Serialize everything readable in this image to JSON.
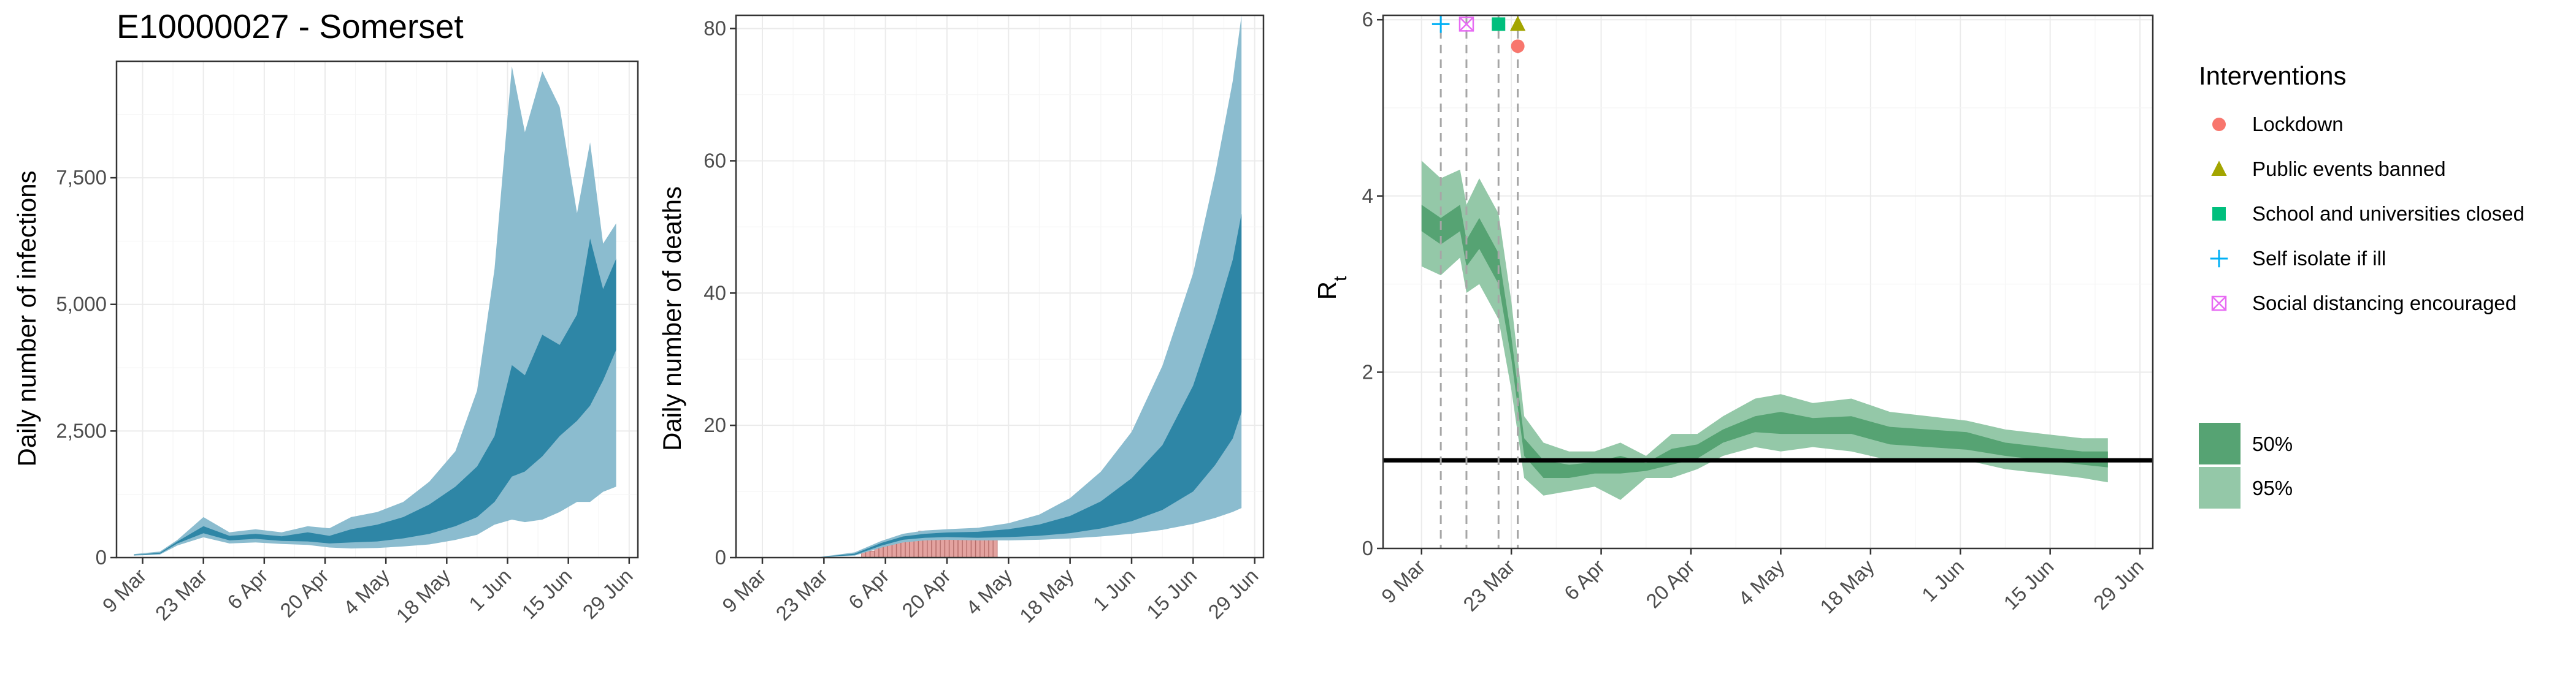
{
  "title": "E10000027 - Somerset",
  "colors": {
    "infections_95": "#8bbccf",
    "infections_50": "#2e86a6",
    "deaths_bars": "#e4a3a0",
    "rt_95": "#94c8a8",
    "rt_50": "#56a373",
    "lockdown": "#f8766d",
    "public_events": "#a3a500",
    "school": "#00bf7d",
    "self_isolate": "#00b0f6",
    "social_distancing": "#e76bf3",
    "grid_major": "#ebebeb",
    "grid_minor": "#f5f5f5",
    "panel_border": "#333333"
  },
  "legend": {
    "interventions_title": "Interventions",
    "interventions": [
      {
        "label": "Lockdown",
        "shape": "circle",
        "color_key": "lockdown"
      },
      {
        "label": "Public events banned",
        "shape": "triangle",
        "color_key": "public_events"
      },
      {
        "label": "School and universities closed",
        "shape": "square",
        "color_key": "school"
      },
      {
        "label": "Self isolate if ill",
        "shape": "plus",
        "color_key": "self_isolate"
      },
      {
        "label": "Social distancing encouraged",
        "shape": "boxx",
        "color_key": "social_distancing"
      }
    ],
    "intervals": [
      {
        "label": "50%",
        "color_key": "rt_50"
      },
      {
        "label": "95%",
        "color_key": "rt_95"
      }
    ]
  },
  "chart_data": [
    {
      "type": "area",
      "ylabel": "Daily number of infections",
      "xlabel": "",
      "x_range": [
        "2020-03-03",
        "2020-07-01"
      ],
      "ylim": [
        0,
        9800
      ],
      "x_ticks": [
        "2020-03-09",
        "2020-03-23",
        "2020-04-06",
        "2020-04-20",
        "2020-05-04",
        "2020-05-18",
        "2020-06-01",
        "2020-06-15",
        "2020-06-29"
      ],
      "x_tick_labels": [
        "9 Mar",
        "23 Mar",
        "6 Apr",
        "20 Apr",
        "4 May",
        "18 May",
        "1 Jun",
        "15 Jun",
        "29 Jun"
      ],
      "y_ticks": [
        0,
        2500,
        5000,
        7500
      ],
      "y_tick_labels": [
        "0",
        "2,500",
        "5,000",
        "7,500"
      ],
      "series": [
        {
          "name": "95%",
          "x": [
            "2020-03-07",
            "2020-03-13",
            "2020-03-17",
            "2020-03-23",
            "2020-03-29",
            "2020-04-04",
            "2020-04-10",
            "2020-04-16",
            "2020-04-21",
            "2020-04-26",
            "2020-05-02",
            "2020-05-08",
            "2020-05-14",
            "2020-05-20",
            "2020-05-25",
            "2020-05-29",
            "2020-06-02",
            "2020-06-05",
            "2020-06-09",
            "2020-06-13",
            "2020-06-17",
            "2020-06-20",
            "2020-06-23",
            "2020-06-26"
          ],
          "upper": [
            70,
            120,
            350,
            800,
            500,
            560,
            500,
            620,
            580,
            800,
            900,
            1100,
            1500,
            2100,
            3300,
            5700,
            9700,
            8400,
            9600,
            8900,
            6800,
            8200,
            6200,
            6600
          ],
          "lower": [
            40,
            60,
            240,
            400,
            280,
            300,
            270,
            250,
            200,
            180,
            190,
            220,
            260,
            350,
            450,
            650,
            750,
            700,
            750,
            900,
            1100,
            1100,
            1300,
            1400
          ]
        },
        {
          "name": "50%",
          "x": [
            "2020-03-07",
            "2020-03-13",
            "2020-03-17",
            "2020-03-23",
            "2020-03-29",
            "2020-04-04",
            "2020-04-10",
            "2020-04-16",
            "2020-04-21",
            "2020-04-26",
            "2020-05-02",
            "2020-05-08",
            "2020-05-14",
            "2020-05-20",
            "2020-05-25",
            "2020-05-29",
            "2020-06-02",
            "2020-06-05",
            "2020-06-09",
            "2020-06-13",
            "2020-06-17",
            "2020-06-20",
            "2020-06-23",
            "2020-06-26"
          ],
          "upper": [
            55,
            95,
            320,
            620,
            430,
            470,
            420,
            500,
            430,
            560,
            650,
            800,
            1050,
            1400,
            1800,
            2400,
            3800,
            3600,
            4400,
            4200,
            4800,
            6300,
            5300,
            5900
          ],
          "lower": [
            45,
            75,
            280,
            480,
            340,
            370,
            330,
            320,
            280,
            300,
            320,
            380,
            470,
            620,
            800,
            1100,
            1600,
            1700,
            2000,
            2400,
            2700,
            3000,
            3500,
            4100
          ]
        }
      ]
    },
    {
      "type": "area",
      "ylabel": "Daily number of deaths",
      "xlabel": "",
      "x_range": [
        "2020-03-03",
        "2020-07-01"
      ],
      "ylim": [
        0,
        82
      ],
      "x_ticks": [
        "2020-03-09",
        "2020-03-23",
        "2020-04-06",
        "2020-04-20",
        "2020-05-04",
        "2020-05-18",
        "2020-06-01",
        "2020-06-15",
        "2020-06-29"
      ],
      "x_tick_labels": [
        "9 Mar",
        "23 Mar",
        "6 Apr",
        "20 Apr",
        "4 May",
        "18 May",
        "1 Jun",
        "15 Jun",
        "29 Jun"
      ],
      "y_ticks": [
        0,
        20,
        40,
        60,
        80
      ],
      "y_tick_labels": [
        "0",
        "20",
        "40",
        "60",
        "80"
      ],
      "series": [
        {
          "name": "95%",
          "x": [
            "2020-03-07",
            "2020-03-21",
            "2020-03-30",
            "2020-04-05",
            "2020-04-10",
            "2020-04-15",
            "2020-04-20",
            "2020-04-27",
            "2020-05-04",
            "2020-05-11",
            "2020-05-18",
            "2020-05-25",
            "2020-06-01",
            "2020-06-08",
            "2020-06-15",
            "2020-06-20",
            "2020-06-24",
            "2020-06-26"
          ],
          "upper": [
            0,
            0,
            0.8,
            2.5,
            3.6,
            4.1,
            4.3,
            4.5,
            5.2,
            6.5,
            9,
            13,
            19,
            29,
            43,
            58,
            72,
            82
          ],
          "lower": [
            0,
            0,
            0.3,
            1.5,
            2.3,
            2.6,
            2.7,
            2.6,
            2.6,
            2.7,
            2.9,
            3.2,
            3.6,
            4.2,
            5.1,
            6,
            6.9,
            7.5
          ]
        },
        {
          "name": "50%",
          "x": [
            "2020-03-07",
            "2020-03-21",
            "2020-03-30",
            "2020-04-05",
            "2020-04-10",
            "2020-04-15",
            "2020-04-20",
            "2020-04-27",
            "2020-05-04",
            "2020-05-11",
            "2020-05-18",
            "2020-05-25",
            "2020-06-01",
            "2020-06-08",
            "2020-06-15",
            "2020-06-20",
            "2020-06-24",
            "2020-06-26"
          ],
          "upper": [
            0,
            0,
            0.6,
            2.2,
            3.2,
            3.6,
            3.8,
            3.9,
            4.3,
            5,
            6.3,
            8.5,
            12,
            17,
            26,
            36,
            45,
            52
          ],
          "lower": [
            0,
            0,
            0.4,
            1.8,
            2.7,
            3,
            3.1,
            3,
            3.1,
            3.3,
            3.7,
            4.4,
            5.5,
            7.2,
            10,
            14,
            18,
            22
          ]
        }
      ],
      "bars": {
        "name": "deaths",
        "x": [
          "2020-04-01",
          "2020-04-02",
          "2020-04-03",
          "2020-04-04",
          "2020-04-05",
          "2020-04-06",
          "2020-04-07",
          "2020-04-08",
          "2020-04-09",
          "2020-04-10",
          "2020-04-11",
          "2020-04-12",
          "2020-04-13",
          "2020-04-14",
          "2020-04-15",
          "2020-04-16",
          "2020-04-17",
          "2020-04-18",
          "2020-04-19",
          "2020-04-20",
          "2020-04-21",
          "2020-04-22",
          "2020-04-23",
          "2020-04-24",
          "2020-04-25",
          "2020-04-26",
          "2020-04-27",
          "2020-04-28",
          "2020-04-29",
          "2020-04-30",
          "2020-05-01"
        ],
        "values": [
          1,
          1,
          1,
          2,
          2,
          2,
          2,
          3,
          3,
          3,
          3,
          3,
          3,
          4,
          4,
          4,
          3,
          4,
          4,
          3,
          4,
          3,
          4,
          3,
          3,
          4,
          3,
          3,
          3,
          3,
          3
        ]
      }
    },
    {
      "type": "area",
      "ylabel": "R_t",
      "xlabel": "",
      "x_range": [
        "2020-03-03",
        "2020-07-01"
      ],
      "ylim": [
        0,
        6.05
      ],
      "x_ticks": [
        "2020-03-09",
        "2020-03-23",
        "2020-04-06",
        "2020-04-20",
        "2020-05-04",
        "2020-05-18",
        "2020-06-01",
        "2020-06-15",
        "2020-06-29"
      ],
      "x_tick_labels": [
        "9 Mar",
        "23 Mar",
        "6 Apr",
        "20 Apr",
        "4 May",
        "18 May",
        "1 Jun",
        "15 Jun",
        "29 Jun"
      ],
      "y_ticks": [
        0,
        2,
        4,
        6
      ],
      "y_tick_labels": [
        "0",
        "2",
        "4",
        "6"
      ],
      "reference_line": 1,
      "series": [
        {
          "name": "95%",
          "x": [
            "2020-03-09",
            "2020-03-12",
            "2020-03-15",
            "2020-03-16",
            "2020-03-18",
            "2020-03-21",
            "2020-03-23",
            "2020-03-25",
            "2020-03-28",
            "2020-04-01",
            "2020-04-05",
            "2020-04-09",
            "2020-04-13",
            "2020-04-17",
            "2020-04-21",
            "2020-04-25",
            "2020-04-30",
            "2020-05-04",
            "2020-05-09",
            "2020-05-15",
            "2020-05-21",
            "2020-05-27",
            "2020-06-02",
            "2020-06-08",
            "2020-06-14",
            "2020-06-20",
            "2020-06-24"
          ],
          "upper": [
            4.4,
            4.2,
            4.3,
            3.9,
            4.2,
            3.8,
            2.8,
            1.5,
            1.2,
            1.1,
            1.1,
            1.2,
            1.05,
            1.3,
            1.3,
            1.5,
            1.7,
            1.75,
            1.65,
            1.7,
            1.55,
            1.5,
            1.45,
            1.35,
            1.3,
            1.25,
            1.25
          ],
          "lower": [
            3.2,
            3.1,
            3.3,
            2.9,
            3,
            2.6,
            1.8,
            0.8,
            0.6,
            0.65,
            0.7,
            0.55,
            0.8,
            0.8,
            0.9,
            1.05,
            1.15,
            1.1,
            1.15,
            1.1,
            1,
            1,
            1,
            0.9,
            0.85,
            0.8,
            0.75
          ]
        },
        {
          "name": "50%",
          "x": [
            "2020-03-09",
            "2020-03-12",
            "2020-03-15",
            "2020-03-16",
            "2020-03-18",
            "2020-03-21",
            "2020-03-23",
            "2020-03-25",
            "2020-03-28",
            "2020-04-01",
            "2020-04-05",
            "2020-04-09",
            "2020-04-13",
            "2020-04-17",
            "2020-04-21",
            "2020-04-25",
            "2020-04-30",
            "2020-05-04",
            "2020-05-09",
            "2020-05-15",
            "2020-05-21",
            "2020-05-27",
            "2020-06-02",
            "2020-06-08",
            "2020-06-14",
            "2020-06-20",
            "2020-06-24"
          ],
          "upper": [
            3.9,
            3.75,
            3.9,
            3.5,
            3.75,
            3.35,
            2.4,
            1.25,
            1,
            0.95,
            0.98,
            1.05,
            0.97,
            1.13,
            1.18,
            1.35,
            1.5,
            1.55,
            1.48,
            1.5,
            1.38,
            1.35,
            1.32,
            1.2,
            1.15,
            1.1,
            1.1
          ],
          "lower": [
            3.6,
            3.45,
            3.6,
            3.2,
            3.4,
            3,
            2.15,
            1.05,
            0.8,
            0.8,
            0.85,
            0.85,
            0.88,
            0.95,
            1.02,
            1.2,
            1.32,
            1.3,
            1.3,
            1.3,
            1.18,
            1.15,
            1.12,
            1.05,
            1,
            0.95,
            0.92
          ]
        }
      ],
      "interventions": [
        {
          "name": "Lockdown",
          "date": "2020-03-24",
          "marker_y": 5.7
        },
        {
          "name": "Public events banned",
          "date": "2020-03-24",
          "marker_y": 5.95
        },
        {
          "name": "School and universities closed",
          "date": "2020-03-21",
          "marker_y": 5.95
        },
        {
          "name": "Self isolate if ill",
          "date": "2020-03-12",
          "marker_y": 5.95
        },
        {
          "name": "Social distancing encouraged",
          "date": "2020-03-16",
          "marker_y": 5.95
        }
      ]
    }
  ]
}
